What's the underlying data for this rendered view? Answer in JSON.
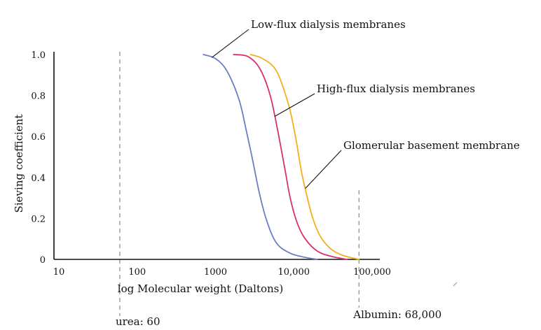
{
  "chart_data": {
    "type": "line",
    "xscale": "log",
    "xlabel": "log Molecular weight (Daltons)",
    "ylabel": "Sieving coefficient",
    "xlim": [
      10,
      100000
    ],
    "ylim": [
      0,
      1.0
    ],
    "x_ticks": [
      {
        "value": 10,
        "label": "10"
      },
      {
        "value": 100,
        "label": "100"
      },
      {
        "value": 1000,
        "label": "1000"
      },
      {
        "value": 10000,
        "label": "10,000"
      },
      {
        "value": 100000,
        "label": "100,000"
      }
    ],
    "y_ticks": [
      {
        "value": 0,
        "label": "0"
      },
      {
        "value": 0.2,
        "label": "0.2"
      },
      {
        "value": 0.4,
        "label": "0.4"
      },
      {
        "value": 0.6,
        "label": "0.6"
      },
      {
        "value": 0.8,
        "label": "0.8"
      },
      {
        "value": 1.0,
        "label": "1.0"
      }
    ],
    "grid": false,
    "series": [
      {
        "name": "Low-flux dialysis membranes",
        "color": "#6b7ec4",
        "points": [
          [
            700,
            1.0
          ],
          [
            1000,
            0.98
          ],
          [
            1400,
            0.92
          ],
          [
            2000,
            0.78
          ],
          [
            2500,
            0.62
          ],
          [
            3000,
            0.48
          ],
          [
            3600,
            0.33
          ],
          [
            4500,
            0.19
          ],
          [
            6000,
            0.08
          ],
          [
            9000,
            0.03
          ],
          [
            14000,
            0.01
          ],
          [
            20000,
            0.0
          ]
        ]
      },
      {
        "name": "High-flux dialysis membranes",
        "color": "#d6336c",
        "points": [
          [
            1700,
            1.0
          ],
          [
            2600,
            0.99
          ],
          [
            3700,
            0.93
          ],
          [
            5000,
            0.8
          ],
          [
            6300,
            0.62
          ],
          [
            7700,
            0.44
          ],
          [
            9000,
            0.3
          ],
          [
            11000,
            0.18
          ],
          [
            14000,
            0.1
          ],
          [
            20000,
            0.04
          ],
          [
            30000,
            0.015
          ],
          [
            48000,
            0.0
          ]
        ]
      },
      {
        "name": "Glomerular basement membrane",
        "color": "#f2b01e",
        "points": [
          [
            2800,
            1.0
          ],
          [
            4000,
            0.98
          ],
          [
            6000,
            0.92
          ],
          [
            8500,
            0.76
          ],
          [
            10500,
            0.6
          ],
          [
            12500,
            0.43
          ],
          [
            14500,
            0.32
          ],
          [
            17500,
            0.2
          ],
          [
            22000,
            0.11
          ],
          [
            30000,
            0.05
          ],
          [
            42000,
            0.02
          ],
          [
            68000,
            0.0
          ]
        ]
      }
    ],
    "reference_lines": [
      {
        "name": "urea",
        "label": "urea: 60",
        "x": 60
      },
      {
        "name": "albumin",
        "label": "Albumin: 68,000",
        "x": 68000
      }
    ],
    "annotations": [
      {
        "series": 0,
        "text": "Low-flux dialysis membranes",
        "at_x": 900
      },
      {
        "series": 1,
        "text": "High-flux dialysis membranes",
        "at_x": 5700
      },
      {
        "series": 2,
        "text": "Glomerular basement membrane",
        "at_x": 14000
      }
    ]
  }
}
